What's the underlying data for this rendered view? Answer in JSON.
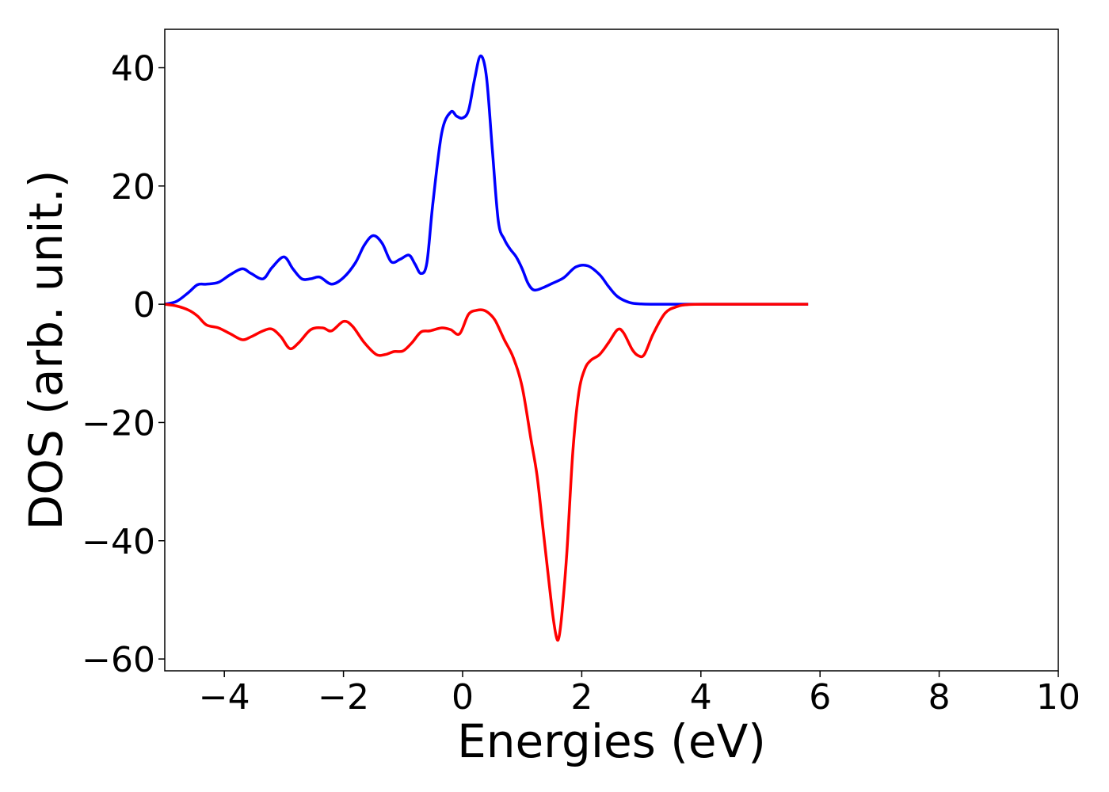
{
  "chart_data": {
    "type": "line",
    "title": "",
    "xlabel": "Energies (eV)",
    "ylabel": "DOS (arb. unit.)",
    "xlim": [
      -5,
      10
    ],
    "ylim": [
      -62,
      46.5
    ],
    "xticks": [
      -4,
      -2,
      0,
      2,
      4,
      6,
      8,
      10
    ],
    "xtick_labels": [
      "−4",
      "−2",
      "0",
      "2",
      "4",
      "6",
      "8",
      "10"
    ],
    "yticks": [
      -60,
      -40,
      -20,
      0,
      20,
      40
    ],
    "ytick_labels": [
      "−60",
      "−40",
      "−20",
      "0",
      "20",
      "40"
    ],
    "grid": false,
    "legend": "none",
    "series": [
      {
        "color": "#0000ff",
        "x": [
          -5.0,
          -4.8,
          -4.6,
          -4.45,
          -4.3,
          -4.1,
          -3.9,
          -3.7,
          -3.55,
          -3.35,
          -3.2,
          -3.0,
          -2.85,
          -2.7,
          -2.55,
          -2.4,
          -2.2,
          -2.0,
          -1.8,
          -1.65,
          -1.5,
          -1.35,
          -1.2,
          -1.05,
          -0.9,
          -0.8,
          -0.7,
          -0.6,
          -0.5,
          -0.35,
          -0.2,
          -0.1,
          0.0,
          0.1,
          0.2,
          0.3,
          0.4,
          0.5,
          0.6,
          0.7,
          0.8,
          0.9,
          1.0,
          1.1,
          1.2,
          1.35,
          1.5,
          1.7,
          1.9,
          2.1,
          2.3,
          2.45,
          2.6,
          2.8,
          3.0,
          3.2,
          3.4,
          3.6,
          4.0,
          5.0,
          5.8
        ],
        "y": [
          0.0,
          0.5,
          2.0,
          3.3,
          3.4,
          3.7,
          5.0,
          6.0,
          5.2,
          4.3,
          6.2,
          8.0,
          6.0,
          4.3,
          4.3,
          4.6,
          3.4,
          4.5,
          7.0,
          10.0,
          11.6,
          10.3,
          7.2,
          7.6,
          8.3,
          6.8,
          5.2,
          7.0,
          17.0,
          29.0,
          32.5,
          31.8,
          31.5,
          32.8,
          38.0,
          42.0,
          38.5,
          26.0,
          14.0,
          11.0,
          9.3,
          8.0,
          6.0,
          3.5,
          2.4,
          2.8,
          3.5,
          4.5,
          6.3,
          6.5,
          5.0,
          3.0,
          1.3,
          0.3,
          0.05,
          0.0,
          0.0,
          0.0,
          0.0,
          0.0,
          0.0
        ]
      },
      {
        "color": "#ff0000",
        "x": [
          -5.0,
          -4.8,
          -4.6,
          -4.45,
          -4.3,
          -4.1,
          -3.9,
          -3.7,
          -3.55,
          -3.35,
          -3.2,
          -3.05,
          -2.9,
          -2.75,
          -2.55,
          -2.35,
          -2.2,
          -2.0,
          -1.85,
          -1.65,
          -1.45,
          -1.3,
          -1.15,
          -1.0,
          -0.85,
          -0.7,
          -0.55,
          -0.35,
          -0.2,
          -0.05,
          0.1,
          0.25,
          0.35,
          0.45,
          0.55,
          0.7,
          0.85,
          1.0,
          1.15,
          1.25,
          1.35,
          1.45,
          1.52,
          1.58,
          1.62,
          1.67,
          1.75,
          1.85,
          1.95,
          2.05,
          2.15,
          2.3,
          2.45,
          2.6,
          2.7,
          2.85,
          2.95,
          3.05,
          3.2,
          3.4,
          3.6,
          3.8,
          4.2,
          5.0,
          5.8
        ],
        "y": [
          0.0,
          -0.3,
          -1.0,
          -2.0,
          -3.5,
          -4.0,
          -5.0,
          -6.0,
          -5.5,
          -4.5,
          -4.2,
          -5.5,
          -7.5,
          -6.5,
          -4.3,
          -4.0,
          -4.5,
          -2.9,
          -3.7,
          -6.5,
          -8.5,
          -8.5,
          -8.0,
          -7.9,
          -6.5,
          -4.7,
          -4.5,
          -4.0,
          -4.3,
          -5.0,
          -1.7,
          -1.0,
          -1.0,
          -1.6,
          -2.8,
          -6.0,
          -9.0,
          -14.0,
          -23.0,
          -29.0,
          -38.0,
          -47.0,
          -53.0,
          -56.5,
          -56.2,
          -52.0,
          -42.0,
          -25.0,
          -15.0,
          -11.0,
          -9.5,
          -8.5,
          -6.5,
          -4.3,
          -4.8,
          -7.7,
          -8.7,
          -8.5,
          -5.0,
          -1.5,
          -0.4,
          -0.05,
          0.0,
          0.0,
          0.0
        ]
      }
    ]
  }
}
